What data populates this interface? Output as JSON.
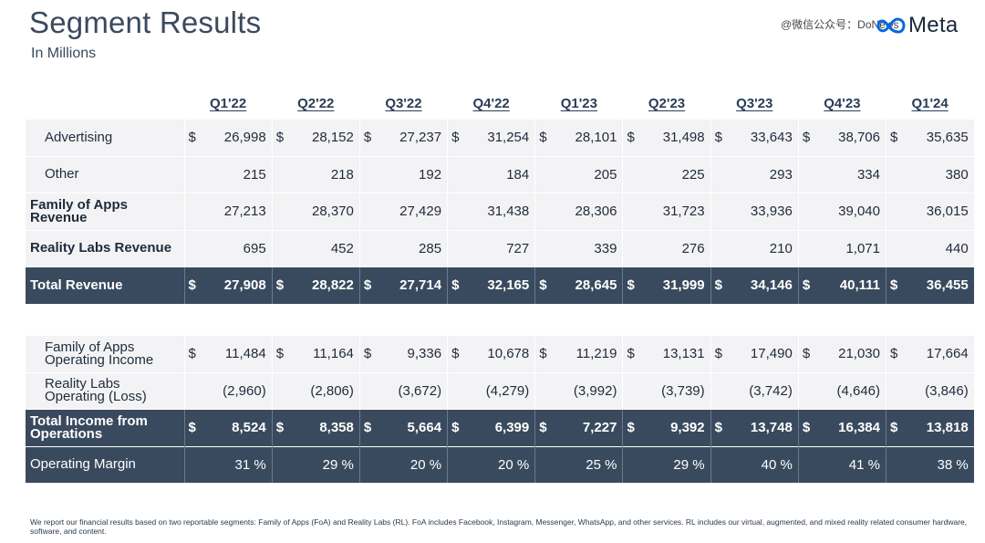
{
  "header": {
    "title": "Segment Results",
    "subtitle": "In Millions",
    "watermark": "@微信公众号：DoNews",
    "logo_text": "Meta"
  },
  "columns": [
    "Q1'22",
    "Q2'22",
    "Q3'22",
    "Q4'22",
    "Q1'23",
    "Q2'23",
    "Q3'23",
    "Q4'23",
    "Q1'24"
  ],
  "revenue_table": {
    "rows": [
      {
        "label": "Advertising",
        "style": "indent",
        "dollar": true,
        "values": [
          "26,998",
          "28,152",
          "27,237",
          "31,254",
          "28,101",
          "31,498",
          "33,643",
          "38,706",
          "35,635"
        ]
      },
      {
        "label": "Other",
        "style": "indent",
        "dollar": false,
        "values": [
          "215",
          "218",
          "192",
          "184",
          "205",
          "225",
          "293",
          "334",
          "380"
        ]
      },
      {
        "label": "Family of Apps Revenue",
        "style": "bold",
        "dollar": false,
        "values": [
          "27,213",
          "28,370",
          "27,429",
          "31,438",
          "28,306",
          "31,723",
          "33,936",
          "39,040",
          "36,015"
        ]
      },
      {
        "label": "Reality Labs Revenue",
        "style": "bold",
        "dollar": false,
        "values": [
          "695",
          "452",
          "285",
          "727",
          "339",
          "276",
          "210",
          "1,071",
          "440"
        ]
      },
      {
        "label": "Total Revenue",
        "style": "total",
        "dollar": true,
        "values": [
          "27,908",
          "28,822",
          "27,714",
          "32,165",
          "28,645",
          "31,999",
          "34,146",
          "40,111",
          "36,455"
        ]
      }
    ]
  },
  "operating_table": {
    "rows": [
      {
        "label": "Family of Apps Operating Income",
        "style": "indent",
        "dollar": true,
        "values": [
          "11,484",
          "11,164",
          "9,336",
          "10,678",
          "11,219",
          "13,131",
          "17,490",
          "21,030",
          "17,664"
        ]
      },
      {
        "label": "Reality Labs Operating (Loss)",
        "style": "indent",
        "dollar": false,
        "values": [
          "(2,960)",
          "(2,806)",
          "(3,672)",
          "(4,279)",
          "(3,992)",
          "(3,739)",
          "(3,742)",
          "(4,646)",
          "(3,846)"
        ]
      },
      {
        "label": "Total Income from Operations",
        "style": "total",
        "dollar": true,
        "values": [
          "8,524",
          "8,358",
          "5,664",
          "6,399",
          "7,227",
          "9,392",
          "13,748",
          "16,384",
          "13,818"
        ]
      },
      {
        "label": "Operating Margin",
        "style": "margin",
        "dollar": false,
        "values": [
          "31 %",
          "29 %",
          "20 %",
          "20 %",
          "25 %",
          "29 %",
          "40 %",
          "41 %",
          "38 %"
        ]
      }
    ]
  },
  "footnote": "We report our financial results based on two reportable segments: Family of Apps (FoA) and Reality Labs (RL). FoA includes Facebook, Instagram, Messenger, WhatsApp, and other services. RL includes our virtual, augmented, and mixed reality related consumer hardware, software, and content.",
  "colors": {
    "dark_row": "#3a4a5e",
    "light_row": "#f3f3f5",
    "header_text": "#2a3d57",
    "meta_blue": "#0668e1"
  },
  "icons": {
    "logo": "meta-infinity-icon"
  }
}
